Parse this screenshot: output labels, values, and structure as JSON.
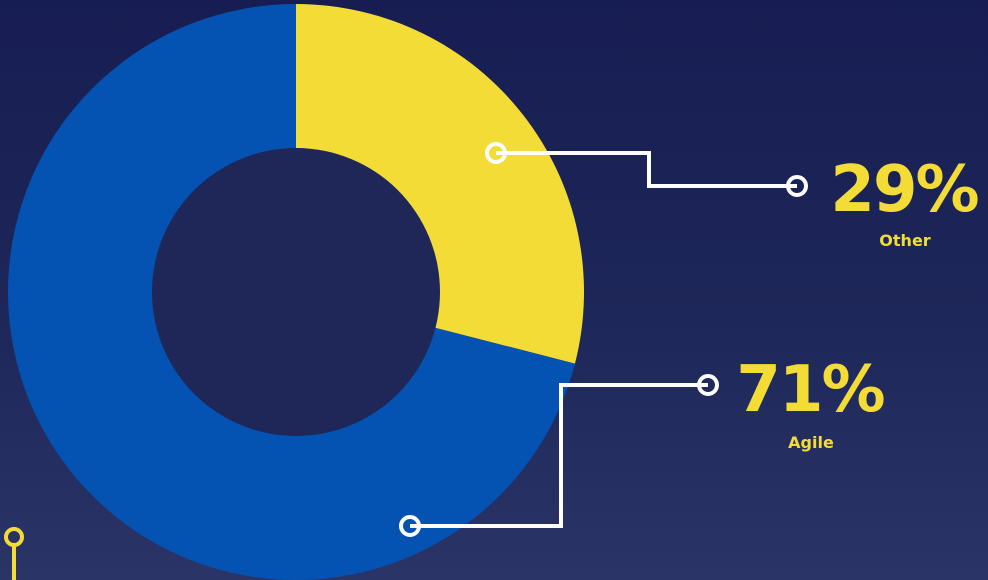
{
  "chart_data": {
    "type": "pie",
    "slices": [
      {
        "label": "Other",
        "value": 29,
        "display": "29%",
        "color": "#f3dc35"
      },
      {
        "label": "Agile",
        "value": 71,
        "display": "71%",
        "color": "#0453b2"
      }
    ],
    "hole_color": "#1f2759",
    "connector_color": "#ffffff",
    "label_color": "#f3dc35",
    "decor_color": "#f3dc35"
  }
}
